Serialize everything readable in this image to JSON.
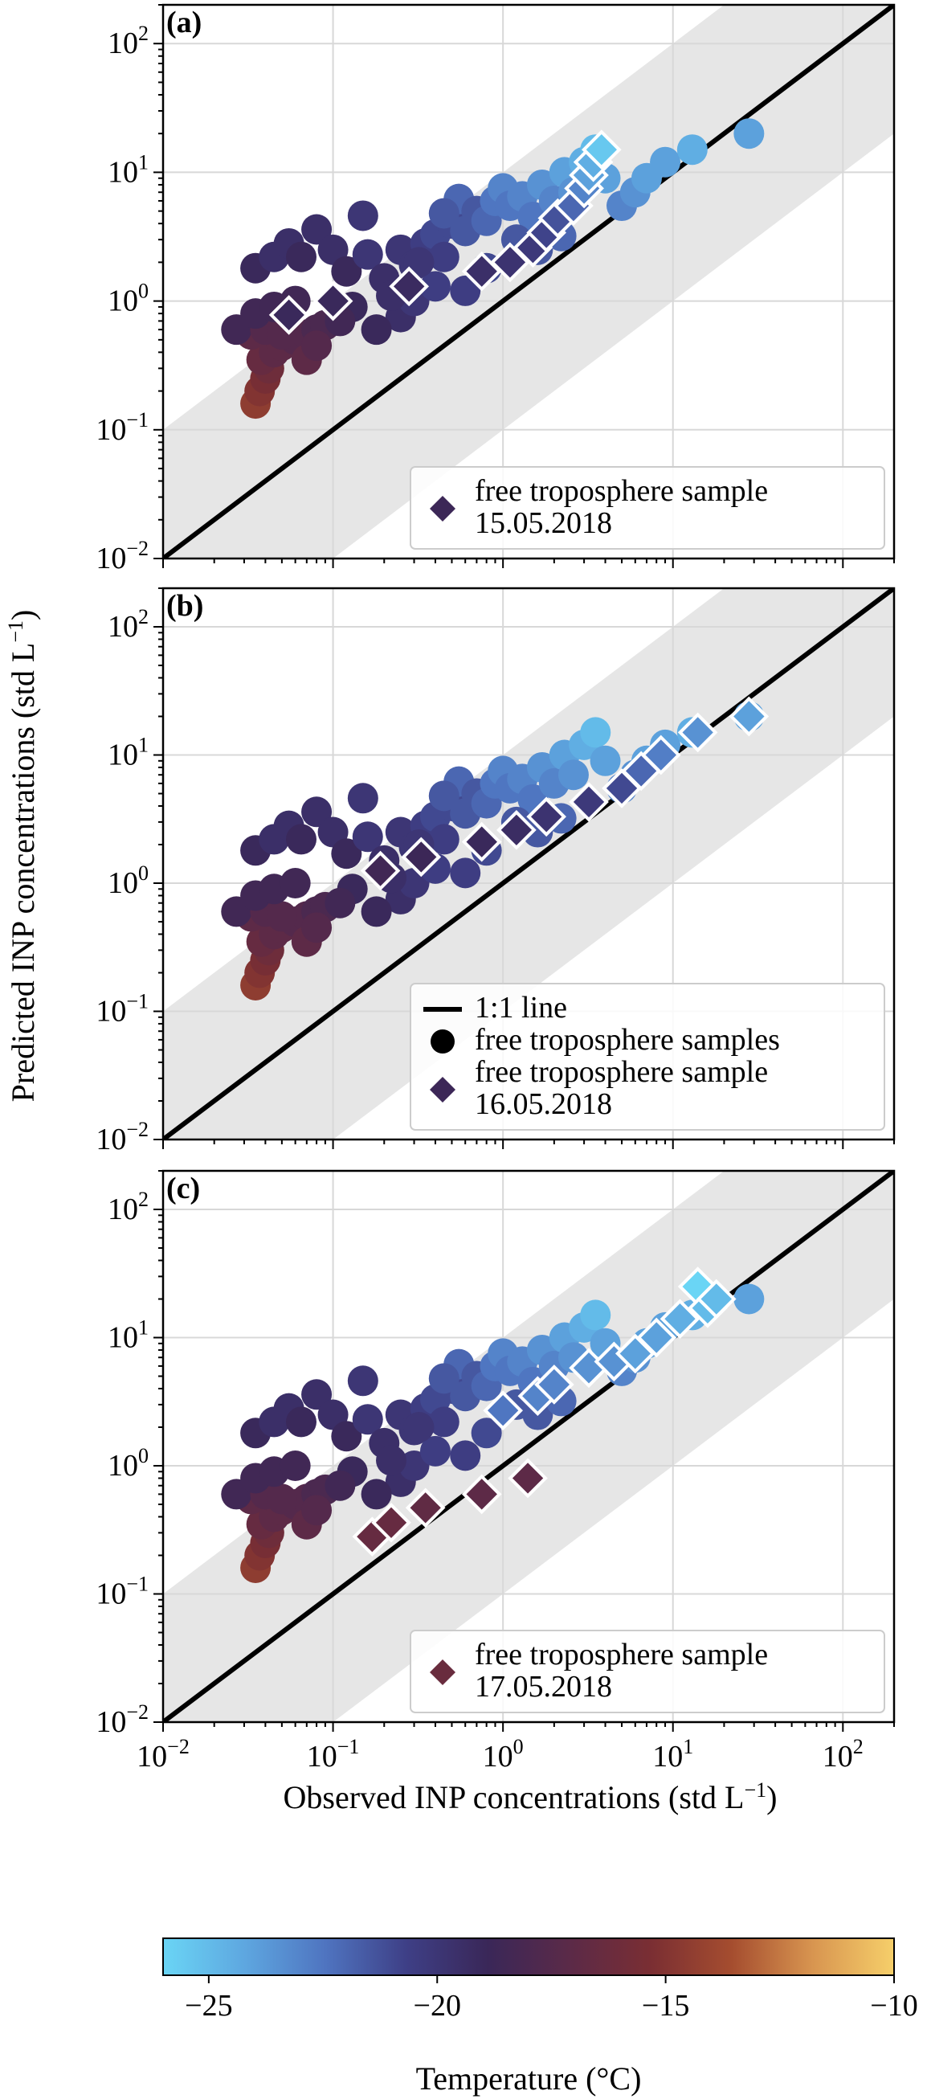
{
  "chart_data": {
    "type": "scatter",
    "xlabel": "Observed INP concentrations (std L",
    "xlabel_sup": "−1",
    "xlabel_close": ")",
    "ylabel": "Predicted INP concentrations (std L",
    "ylabel_sup": "−1",
    "ylabel_close": ")",
    "xlim": [
      0.01,
      200
    ],
    "ylim": [
      0.01,
      200
    ],
    "log_scale": true,
    "grid": true,
    "tick_base": "10",
    "tick_exponents": [
      "−2",
      "−1",
      "0",
      "1",
      "2"
    ],
    "band_factor": 10,
    "colors": {
      "cold": "#6ad5f5",
      "stops": [
        "#6ad5f5",
        "#5ea7e0",
        "#4f74c0",
        "#3e3f86",
        "#3a2758",
        "#5b2a48",
        "#7a2e33",
        "#a54d2f",
        "#d89550",
        "#f6cf6a"
      ],
      "band": "#e6e6e6",
      "line": "#000000",
      "grid": "#d8d8d8"
    },
    "background_points": [
      {
        "x": 0.035,
        "y": 0.16,
        "t": -14.5
      },
      {
        "x": 0.037,
        "y": 0.2,
        "t": -15.0
      },
      {
        "x": 0.04,
        "y": 0.25,
        "t": -15.5
      },
      {
        "x": 0.042,
        "y": 0.3,
        "t": -16.0
      },
      {
        "x": 0.038,
        "y": 0.35,
        "t": -16.5
      },
      {
        "x": 0.045,
        "y": 0.4,
        "t": -17.0
      },
      {
        "x": 0.05,
        "y": 0.45,
        "t": -17.0
      },
      {
        "x": 0.06,
        "y": 0.5,
        "t": -17.5
      },
      {
        "x": 0.07,
        "y": 0.55,
        "t": -17.5
      },
      {
        "x": 0.08,
        "y": 0.6,
        "t": -18.0
      },
      {
        "x": 0.09,
        "y": 0.65,
        "t": -18.0
      },
      {
        "x": 0.033,
        "y": 0.55,
        "t": -17.0
      },
      {
        "x": 0.027,
        "y": 0.6,
        "t": -18.5
      },
      {
        "x": 0.04,
        "y": 0.6,
        "t": -17.5
      },
      {
        "x": 0.05,
        "y": 0.55,
        "t": -17.5
      },
      {
        "x": 0.035,
        "y": 0.8,
        "t": -18.5
      },
      {
        "x": 0.045,
        "y": 0.9,
        "t": -18.5
      },
      {
        "x": 0.06,
        "y": 1.0,
        "t": -18.5
      },
      {
        "x": 0.035,
        "y": 1.8,
        "t": -19.0
      },
      {
        "x": 0.045,
        "y": 2.2,
        "t": -19.5
      },
      {
        "x": 0.055,
        "y": 2.8,
        "t": -19.5
      },
      {
        "x": 0.065,
        "y": 2.2,
        "t": -19.0
      },
      {
        "x": 0.08,
        "y": 3.6,
        "t": -19.5
      },
      {
        "x": 0.1,
        "y": 2.5,
        "t": -19.5
      },
      {
        "x": 0.12,
        "y": 1.7,
        "t": -19.0
      },
      {
        "x": 0.15,
        "y": 4.6,
        "t": -20.0
      },
      {
        "x": 0.16,
        "y": 2.3,
        "t": -20.0
      },
      {
        "x": 0.13,
        "y": 0.9,
        "t": -19.0
      },
      {
        "x": 0.11,
        "y": 0.7,
        "t": -18.5
      },
      {
        "x": 0.2,
        "y": 1.5,
        "t": -19.5
      },
      {
        "x": 0.25,
        "y": 2.5,
        "t": -20.0
      },
      {
        "x": 0.3,
        "y": 1.9,
        "t": -20.0
      },
      {
        "x": 0.35,
        "y": 2.8,
        "t": -20.5
      },
      {
        "x": 0.4,
        "y": 3.3,
        "t": -21.0
      },
      {
        "x": 0.45,
        "y": 2.2,
        "t": -20.5
      },
      {
        "x": 0.5,
        "y": 4.0,
        "t": -21.0
      },
      {
        "x": 0.55,
        "y": 6.2,
        "t": -22.0
      },
      {
        "x": 0.6,
        "y": 3.5,
        "t": -21.5
      },
      {
        "x": 0.7,
        "y": 5.0,
        "t": -21.5
      },
      {
        "x": 0.8,
        "y": 4.2,
        "t": -22.0
      },
      {
        "x": 0.9,
        "y": 6.0,
        "t": -22.5
      },
      {
        "x": 1.0,
        "y": 7.5,
        "t": -23.0
      },
      {
        "x": 1.1,
        "y": 5.5,
        "t": -22.5
      },
      {
        "x": 1.3,
        "y": 6.5,
        "t": -23.0
      },
      {
        "x": 1.5,
        "y": 4.5,
        "t": -22.5
      },
      {
        "x": 1.7,
        "y": 8.0,
        "t": -23.5
      },
      {
        "x": 2.0,
        "y": 6.0,
        "t": -23.0
      },
      {
        "x": 2.3,
        "y": 10.0,
        "t": -24.0
      },
      {
        "x": 2.6,
        "y": 7.0,
        "t": -23.5
      },
      {
        "x": 3.0,
        "y": 12.0,
        "t": -24.5
      },
      {
        "x": 3.5,
        "y": 15.0,
        "t": -25.0
      },
      {
        "x": 4.0,
        "y": 9.0,
        "t": -24.0
      },
      {
        "x": 5.0,
        "y": 5.5,
        "t": -23.0
      },
      {
        "x": 6.0,
        "y": 7.0,
        "t": -23.5
      },
      {
        "x": 7.0,
        "y": 9.0,
        "t": -24.0
      },
      {
        "x": 9.0,
        "y": 12.0,
        "t": -24.0
      },
      {
        "x": 13.0,
        "y": 15.0,
        "t": -24.5
      },
      {
        "x": 28.0,
        "y": 20.0,
        "t": -24.0
      },
      {
        "x": 0.25,
        "y": 0.75,
        "t": -19.5
      },
      {
        "x": 0.3,
        "y": 1.0,
        "t": -20.0
      },
      {
        "x": 0.4,
        "y": 1.3,
        "t": -20.5
      },
      {
        "x": 0.6,
        "y": 1.2,
        "t": -20.5
      },
      {
        "x": 0.8,
        "y": 1.8,
        "t": -21.0
      },
      {
        "x": 0.18,
        "y": 0.6,
        "t": -19.0
      },
      {
        "x": 0.07,
        "y": 0.35,
        "t": -17.0
      },
      {
        "x": 0.08,
        "y": 0.45,
        "t": -17.5
      },
      {
        "x": 1.2,
        "y": 3.0,
        "t": -21.5
      },
      {
        "x": 1.6,
        "y": 2.5,
        "t": -21.5
      },
      {
        "x": 2.2,
        "y": 3.2,
        "t": -22.0
      },
      {
        "x": 0.45,
        "y": 4.8,
        "t": -21.5
      },
      {
        "x": 0.32,
        "y": 2.0,
        "t": -20.0
      },
      {
        "x": 0.22,
        "y": 1.1,
        "t": -19.5
      }
    ],
    "panels": [
      {
        "label": "(a)",
        "legend": {
          "position": "lower-right",
          "entries": [
            {
              "marker": "diamond",
              "color_t": -18.8,
              "lines": [
                "free troposphere sample",
                "15.05.2018"
              ]
            }
          ]
        },
        "highlight": [
          {
            "x": 0.055,
            "y": 0.78,
            "t": -19.0
          },
          {
            "x": 0.1,
            "y": 1.0,
            "t": -19.0
          },
          {
            "x": 0.28,
            "y": 1.3,
            "t": -19.2
          },
          {
            "x": 0.75,
            "y": 1.7,
            "t": -19.5
          },
          {
            "x": 1.1,
            "y": 2.0,
            "t": -19.8
          },
          {
            "x": 1.5,
            "y": 2.6,
            "t": -20.2
          },
          {
            "x": 1.8,
            "y": 3.4,
            "t": -20.8
          },
          {
            "x": 2.1,
            "y": 4.4,
            "t": -21.3
          },
          {
            "x": 2.6,
            "y": 5.5,
            "t": -22.0
          },
          {
            "x": 3.0,
            "y": 7.5,
            "t": -23.0
          },
          {
            "x": 3.2,
            "y": 9.5,
            "t": -24.0
          },
          {
            "x": 3.4,
            "y": 12.0,
            "t": -24.5
          },
          {
            "x": 3.8,
            "y": 15.0,
            "t": -25.5
          }
        ]
      },
      {
        "label": "(b)",
        "legend": {
          "position": "lower-right",
          "entries": [
            {
              "marker": "line",
              "lines": [
                "1:1 line"
              ]
            },
            {
              "marker": "circle",
              "lines": [
                "free troposphere samples"
              ]
            },
            {
              "marker": "diamond",
              "color_t": -18.8,
              "lines": [
                "free troposphere sample",
                "16.05.2018"
              ]
            }
          ]
        },
        "highlight": [
          {
            "x": 0.19,
            "y": 1.25,
            "t": -18.5
          },
          {
            "x": 0.33,
            "y": 1.6,
            "t": -18.8
          },
          {
            "x": 0.75,
            "y": 2.1,
            "t": -19.0
          },
          {
            "x": 1.2,
            "y": 2.6,
            "t": -19.3
          },
          {
            "x": 1.8,
            "y": 3.3,
            "t": -19.8
          },
          {
            "x": 3.2,
            "y": 4.3,
            "t": -20.2
          },
          {
            "x": 5.0,
            "y": 5.5,
            "t": -21.0
          },
          {
            "x": 6.5,
            "y": 7.5,
            "t": -22.0
          },
          {
            "x": 8.5,
            "y": 10.0,
            "t": -22.8
          },
          {
            "x": 14.0,
            "y": 15.0,
            "t": -23.5
          },
          {
            "x": 28.0,
            "y": 20.0,
            "t": -24.0
          }
        ]
      },
      {
        "label": "(c)",
        "legend": {
          "position": "lower-right",
          "entries": [
            {
              "marker": "diamond",
              "color_t": -16.3,
              "lines": [
                "free troposphere sample",
                "17.05.2018"
              ]
            }
          ]
        },
        "highlight": [
          {
            "x": 0.17,
            "y": 0.28,
            "t": -16.5
          },
          {
            "x": 0.22,
            "y": 0.36,
            "t": -16.5
          },
          {
            "x": 0.35,
            "y": 0.47,
            "t": -16.8
          },
          {
            "x": 0.75,
            "y": 0.6,
            "t": -17.0
          },
          {
            "x": 1.4,
            "y": 0.8,
            "t": -17.0
          },
          {
            "x": 1.0,
            "y": 2.7,
            "t": -22.5
          },
          {
            "x": 1.6,
            "y": 3.5,
            "t": -23.0
          },
          {
            "x": 2.0,
            "y": 4.3,
            "t": -23.0
          },
          {
            "x": 3.2,
            "y": 5.8,
            "t": -23.5
          },
          {
            "x": 4.5,
            "y": 6.5,
            "t": -23.5
          },
          {
            "x": 6.0,
            "y": 7.5,
            "t": -24.0
          },
          {
            "x": 8.0,
            "y": 10.0,
            "t": -24.0
          },
          {
            "x": 11.0,
            "y": 14.0,
            "t": -24.5
          },
          {
            "x": 14.0,
            "y": 25.0,
            "t": -26.0
          },
          {
            "x": 16.0,
            "y": 17.0,
            "t": -25.0
          },
          {
            "x": 18.0,
            "y": 20.0,
            "t": -25.0
          }
        ]
      }
    ],
    "colorbar": {
      "label": "Temperature (°C)",
      "min": -26,
      "max": -10,
      "ticks": [
        -25,
        -20,
        -15,
        -10
      ],
      "tick_labels": [
        "−25",
        "−20",
        "−15",
        "−10"
      ]
    }
  }
}
